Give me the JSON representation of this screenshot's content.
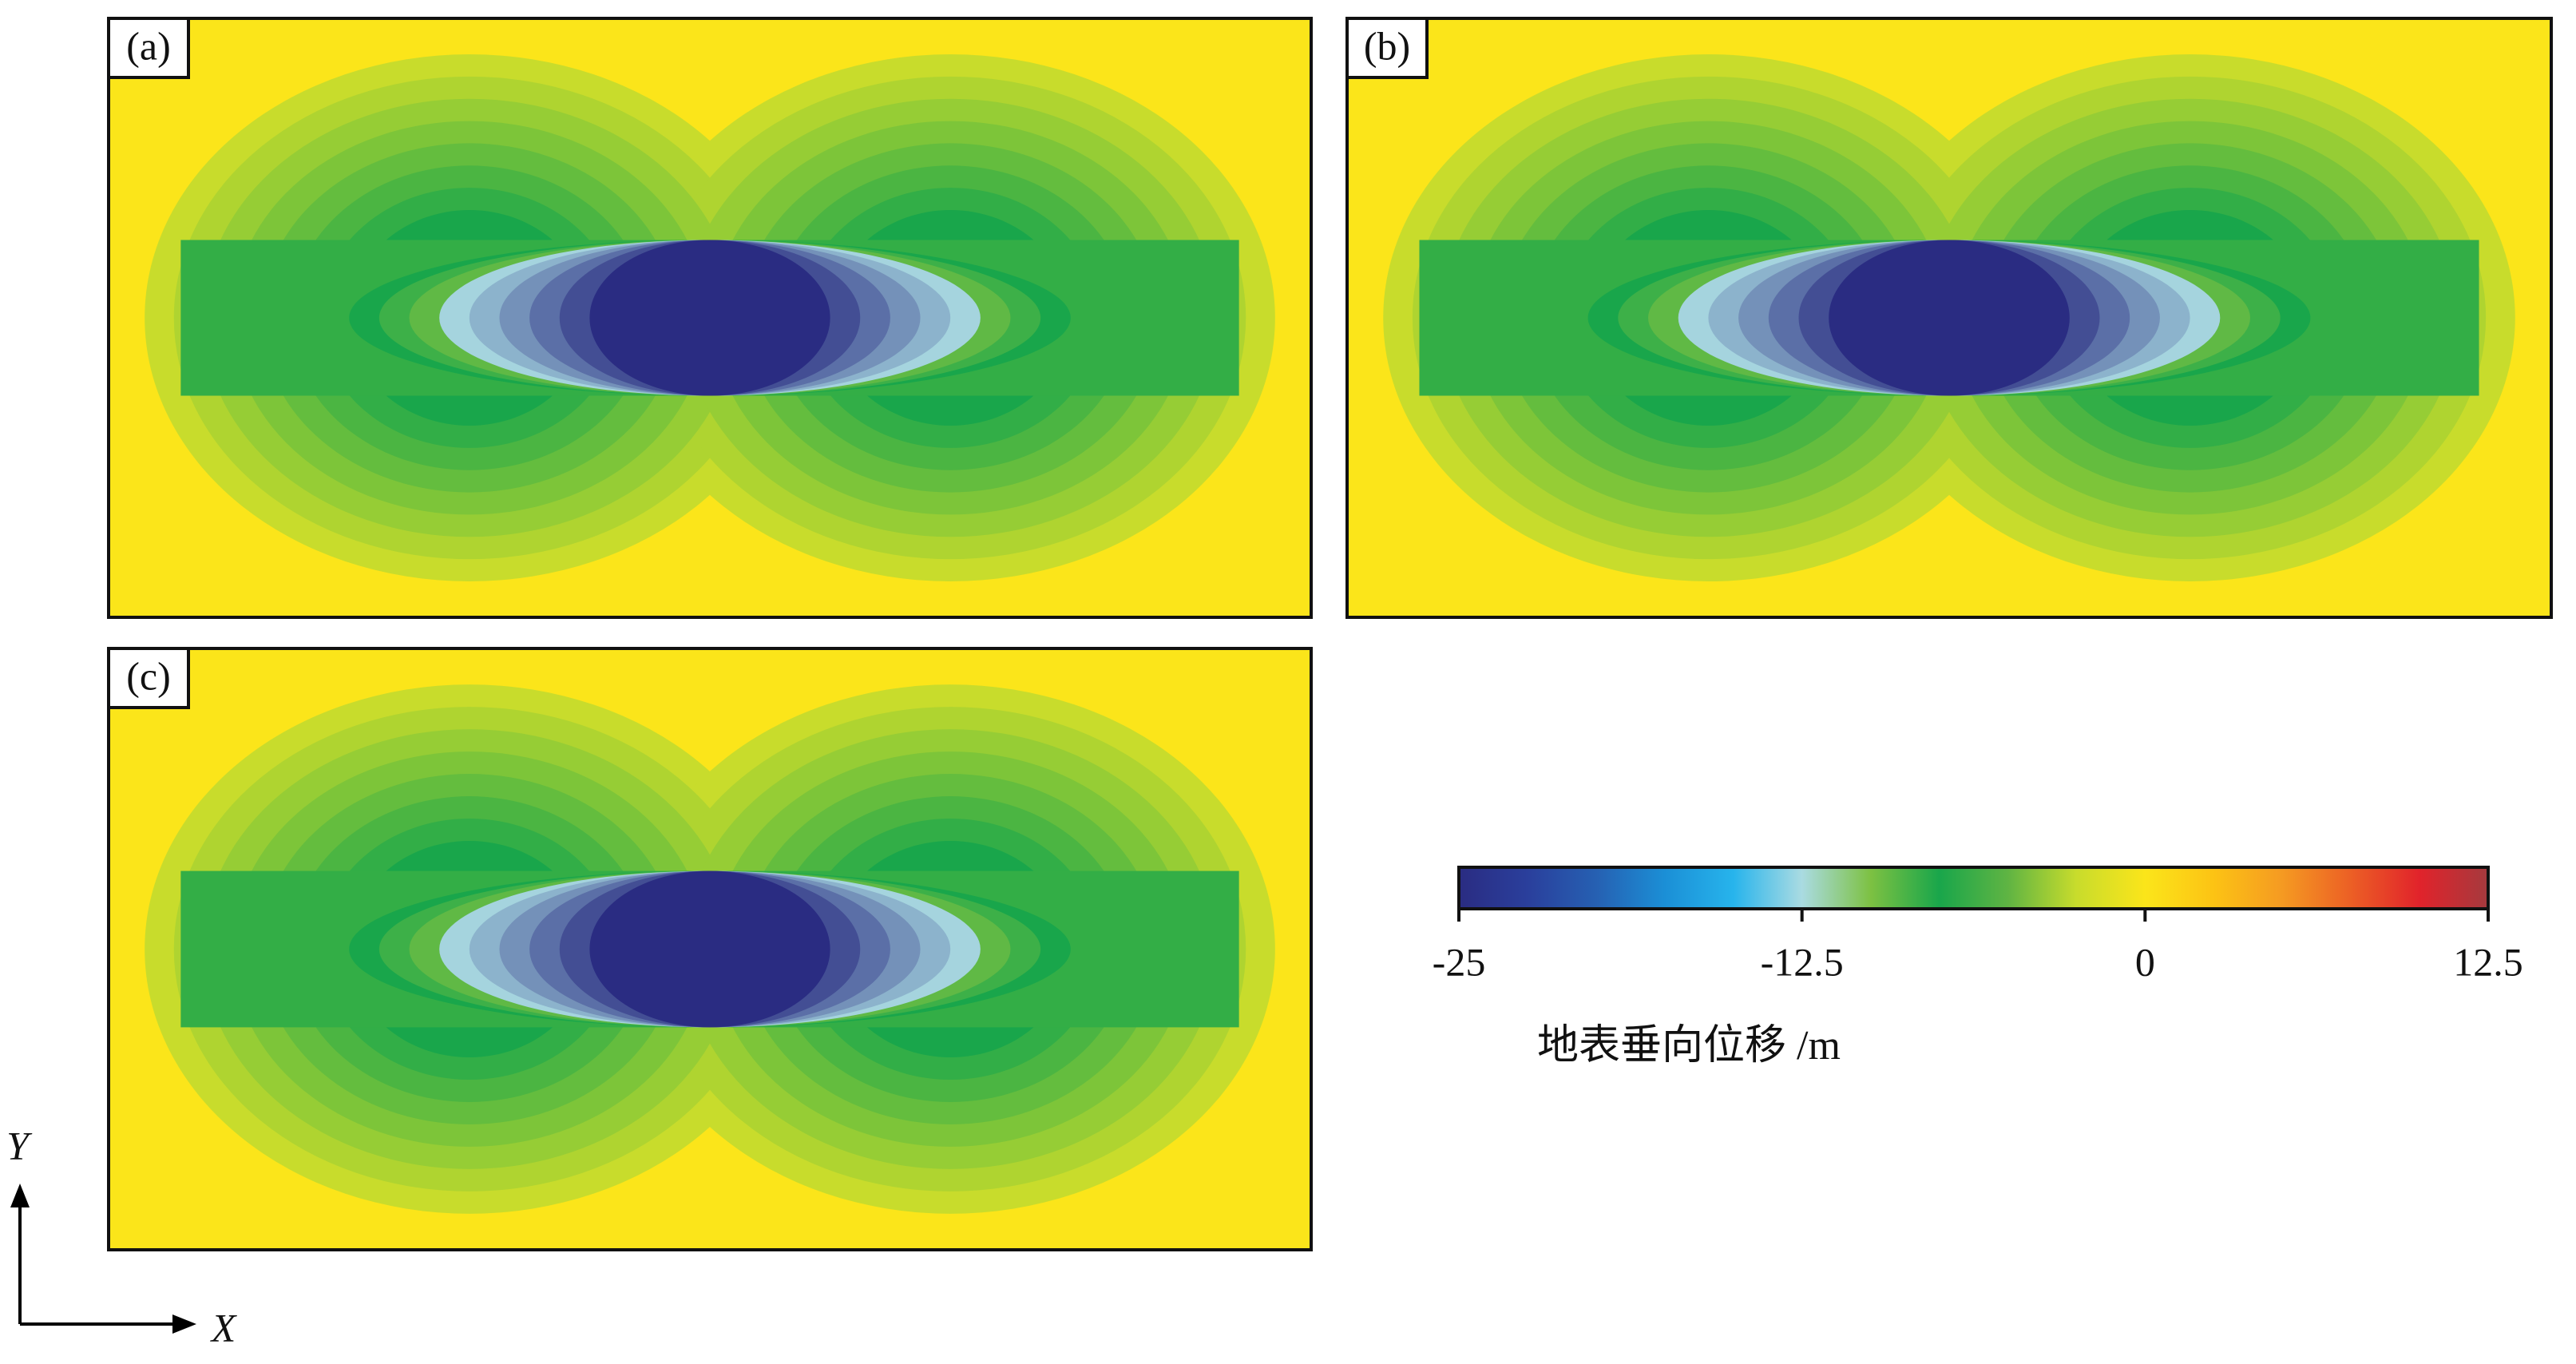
{
  "chart_data": {
    "type": "contour",
    "panels": [
      "(a)",
      "(b)",
      "(c)"
    ],
    "colorbar": {
      "label": "地表垂向位移 /m",
      "lim": [
        -25,
        12.5
      ],
      "ticks": [
        -25,
        -12.5,
        0,
        12.5
      ],
      "colors": [
        "#2a2c82",
        "#2a3f9c",
        "#2660b2",
        "#1b8fd6",
        "#27b4ec",
        "#aadbe2",
        "#7dc142",
        "#19a64b",
        "#5fb443",
        "#c8dc2c",
        "#fbe51a",
        "#fcc314",
        "#f59a22",
        "#ec5f25",
        "#e1232b",
        "#a53a3e"
      ]
    },
    "axes": {
      "x": "X",
      "y": "Y"
    }
  }
}
